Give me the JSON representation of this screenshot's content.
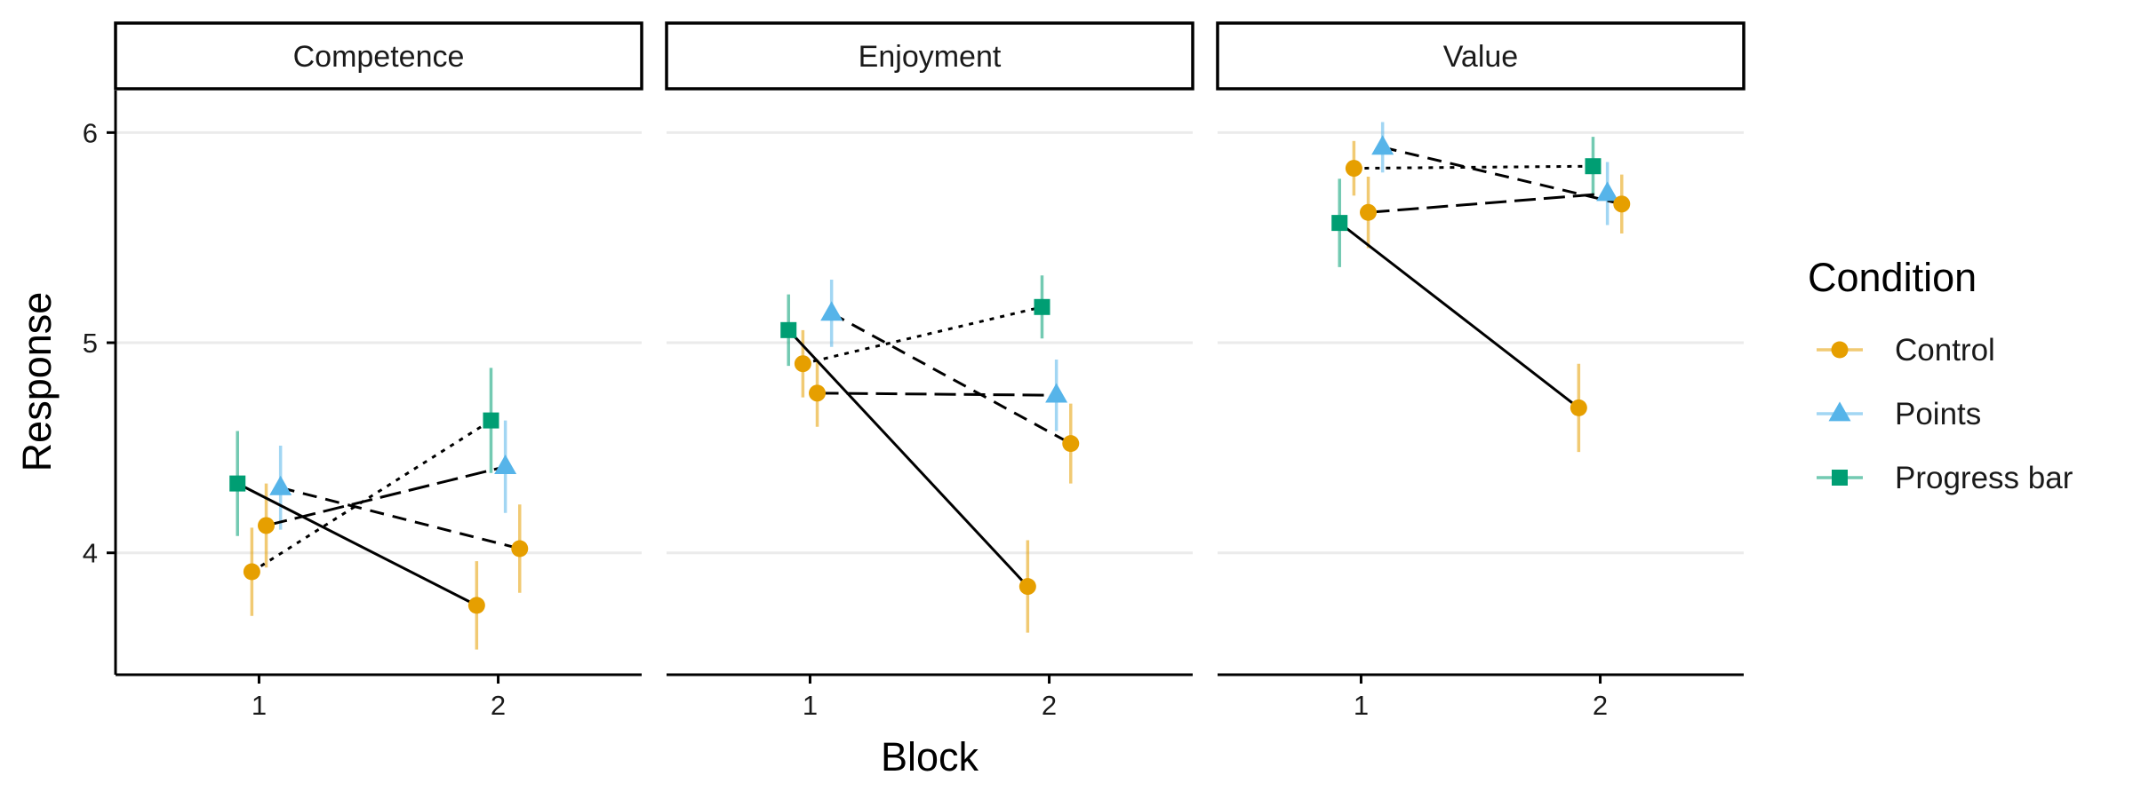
{
  "chart_data": {
    "type": "line",
    "xlabel": "Block",
    "ylabel": "Response",
    "x_ticks": [
      "1",
      "2"
    ],
    "y_ticks": [
      "4",
      "5",
      "6"
    ],
    "ylim": [
      3.42,
      6.2
    ],
    "grid": "horizontal major lines",
    "legend": {
      "title": "Condition",
      "position": "right",
      "entries": [
        "Control",
        "Points",
        "Progress bar"
      ]
    },
    "panels": [
      "Competence",
      "Enjoyment",
      "Value"
    ],
    "series": [
      {
        "panel": "Competence",
        "condition": "Progress bar",
        "linetype": "solid",
        "x": [
          0.91,
          1.91
        ],
        "y": [
          4.33,
          null
        ],
        "lo": [
          4.08,
          null
        ],
        "hi": [
          4.58,
          null
        ],
        "pts": [
          [
            0.91,
            4.33,
            4.08,
            4.58
          ],
          [
            1.91,
            3.75,
            3.54,
            3.96
          ]
        ]
      },
      {
        "panel": "Competence",
        "condition": "Points",
        "linetype": "dashed",
        "pts": [
          [
            1.09,
            4.31,
            4.11,
            4.51
          ],
          [
            2.09,
            4.02,
            3.81,
            4.23
          ]
        ]
      },
      {
        "panel": "Competence",
        "condition": "Control",
        "linetype": "dotted",
        "pts": [
          [
            0.97,
            3.91,
            3.7,
            4.12
          ],
          [
            1.97,
            4.63,
            4.38,
            4.88
          ]
        ]
      },
      {
        "panel": "Competence",
        "condition": "Control",
        "linetype": "longdash",
        "pts": [
          [
            1.03,
            4.13,
            3.93,
            4.33
          ],
          [
            2.03,
            4.41,
            4.19,
            4.63
          ]
        ]
      },
      {
        "panel": "Enjoyment",
        "condition": "Progress bar",
        "linetype": "solid",
        "pts": [
          [
            0.91,
            5.06,
            4.89,
            5.23
          ],
          [
            1.91,
            3.84,
            3.62,
            4.06
          ]
        ]
      },
      {
        "panel": "Enjoyment",
        "condition": "Points",
        "linetype": "dashed",
        "pts": [
          [
            1.09,
            5.14,
            4.98,
            5.3
          ],
          [
            2.09,
            4.52,
            4.33,
            4.71
          ]
        ]
      },
      {
        "panel": "Enjoyment",
        "condition": "Control",
        "linetype": "dotted",
        "pts": [
          [
            0.97,
            4.9,
            4.74,
            5.06
          ],
          [
            1.97,
            5.17,
            5.02,
            5.32
          ]
        ]
      },
      {
        "panel": "Enjoyment",
        "condition": "Control",
        "linetype": "longdash",
        "pts": [
          [
            1.03,
            4.76,
            4.6,
            4.92
          ],
          [
            2.03,
            4.75,
            4.58,
            4.92
          ]
        ]
      },
      {
        "panel": "Value",
        "condition": "Progress bar",
        "linetype": "solid",
        "pts": [
          [
            0.91,
            5.57,
            5.36,
            5.78
          ],
          [
            1.91,
            4.69,
            4.48,
            4.9
          ]
        ]
      },
      {
        "panel": "Value",
        "condition": "Points",
        "linetype": "dashed",
        "pts": [
          [
            1.09,
            5.93,
            5.81,
            6.05
          ],
          [
            2.09,
            5.66,
            5.52,
            5.8
          ]
        ]
      },
      {
        "panel": "Value",
        "condition": "Control",
        "linetype": "dotted",
        "pts": [
          [
            0.97,
            5.83,
            5.7,
            5.96
          ],
          [
            1.97,
            5.84,
            5.7,
            5.98
          ]
        ]
      },
      {
        "panel": "Value",
        "condition": "Control",
        "linetype": "longdash",
        "pts": [
          [
            1.03,
            5.62,
            5.45,
            5.79
          ],
          [
            2.03,
            5.71,
            5.56,
            5.86
          ]
        ]
      }
    ],
    "points": [
      {
        "panel": "Competence",
        "condition": "Progress bar",
        "x": 0.91,
        "y": 4.33,
        "lo": 4.08,
        "hi": 4.58
      },
      {
        "panel": "Competence",
        "condition": "Control",
        "x": 0.97,
        "y": 3.91,
        "lo": 3.7,
        "hi": 4.12
      },
      {
        "panel": "Competence",
        "condition": "Control",
        "x": 1.03,
        "y": 4.13,
        "lo": 3.93,
        "hi": 4.33
      },
      {
        "panel": "Competence",
        "condition": "Points",
        "x": 1.09,
        "y": 4.31,
        "lo": 4.11,
        "hi": 4.51
      },
      {
        "panel": "Competence",
        "condition": "Control",
        "x": 1.91,
        "y": 3.75,
        "lo": 3.54,
        "hi": 3.96
      },
      {
        "panel": "Competence",
        "condition": "Progress bar",
        "x": 1.97,
        "y": 4.63,
        "lo": 4.38,
        "hi": 4.88
      },
      {
        "panel": "Competence",
        "condition": "Points",
        "x": 2.03,
        "y": 4.41,
        "lo": 4.19,
        "hi": 4.63
      },
      {
        "panel": "Competence",
        "condition": "Control",
        "x": 2.09,
        "y": 4.02,
        "lo": 3.81,
        "hi": 4.23
      },
      {
        "panel": "Enjoyment",
        "condition": "Progress bar",
        "x": 0.91,
        "y": 5.06,
        "lo": 4.89,
        "hi": 5.23
      },
      {
        "panel": "Enjoyment",
        "condition": "Control",
        "x": 0.97,
        "y": 4.9,
        "lo": 4.74,
        "hi": 5.06
      },
      {
        "panel": "Enjoyment",
        "condition": "Control",
        "x": 1.03,
        "y": 4.76,
        "lo": 4.6,
        "hi": 4.92
      },
      {
        "panel": "Enjoyment",
        "condition": "Points",
        "x": 1.09,
        "y": 5.14,
        "lo": 4.98,
        "hi": 5.3
      },
      {
        "panel": "Enjoyment",
        "condition": "Control",
        "x": 1.91,
        "y": 3.84,
        "lo": 3.62,
        "hi": 4.06
      },
      {
        "panel": "Enjoyment",
        "condition": "Progress bar",
        "x": 1.97,
        "y": 5.17,
        "lo": 5.02,
        "hi": 5.32
      },
      {
        "panel": "Enjoyment",
        "condition": "Points",
        "x": 2.03,
        "y": 4.75,
        "lo": 4.58,
        "hi": 4.92
      },
      {
        "panel": "Enjoyment",
        "condition": "Control",
        "x": 2.09,
        "y": 4.52,
        "lo": 4.33,
        "hi": 4.71
      },
      {
        "panel": "Value",
        "condition": "Progress bar",
        "x": 0.91,
        "y": 5.57,
        "lo": 5.36,
        "hi": 5.78
      },
      {
        "panel": "Value",
        "condition": "Control",
        "x": 0.97,
        "y": 5.83,
        "lo": 5.7,
        "hi": 5.96
      },
      {
        "panel": "Value",
        "condition": "Control",
        "x": 1.03,
        "y": 5.62,
        "lo": 5.45,
        "hi": 5.79
      },
      {
        "panel": "Value",
        "condition": "Points",
        "x": 1.09,
        "y": 5.93,
        "lo": 5.81,
        "hi": 6.05
      },
      {
        "panel": "Value",
        "condition": "Control",
        "x": 1.91,
        "y": 4.69,
        "lo": 4.48,
        "hi": 4.9
      },
      {
        "panel": "Value",
        "condition": "Progress bar",
        "x": 1.97,
        "y": 5.84,
        "lo": 5.7,
        "hi": 5.98
      },
      {
        "panel": "Value",
        "condition": "Points",
        "x": 2.03,
        "y": 5.71,
        "lo": 5.56,
        "hi": 5.86
      },
      {
        "panel": "Value",
        "condition": "Control",
        "x": 2.09,
        "y": 5.66,
        "lo": 5.52,
        "hi": 5.8
      }
    ],
    "connectors": [
      {
        "panel": "Competence",
        "linetype": "solid",
        "from": [
          0.91,
          4.33
        ],
        "to": [
          1.91,
          3.75
        ]
      },
      {
        "panel": "Competence",
        "linetype": "dotted",
        "from": [
          0.97,
          3.91
        ],
        "to": [
          1.97,
          4.63
        ]
      },
      {
        "panel": "Competence",
        "linetype": "longdash",
        "from": [
          1.03,
          4.13
        ],
        "to": [
          2.03,
          4.41
        ]
      },
      {
        "panel": "Competence",
        "linetype": "dashed",
        "from": [
          1.09,
          4.31
        ],
        "to": [
          2.09,
          4.02
        ]
      },
      {
        "panel": "Enjoyment",
        "linetype": "solid",
        "from": [
          0.91,
          5.06
        ],
        "to": [
          1.91,
          3.84
        ]
      },
      {
        "panel": "Enjoyment",
        "linetype": "dotted",
        "from": [
          0.97,
          4.9
        ],
        "to": [
          1.97,
          5.17
        ]
      },
      {
        "panel": "Enjoyment",
        "linetype": "longdash",
        "from": [
          1.03,
          4.76
        ],
        "to": [
          2.03,
          4.75
        ]
      },
      {
        "panel": "Enjoyment",
        "linetype": "dashed",
        "from": [
          1.09,
          5.14
        ],
        "to": [
          2.09,
          4.52
        ]
      },
      {
        "panel": "Value",
        "linetype": "solid",
        "from": [
          0.91,
          5.57
        ],
        "to": [
          1.91,
          4.69
        ]
      },
      {
        "panel": "Value",
        "linetype": "dotted",
        "from": [
          0.97,
          5.83
        ],
        "to": [
          1.97,
          5.84
        ]
      },
      {
        "panel": "Value",
        "linetype": "longdash",
        "from": [
          1.03,
          5.62
        ],
        "to": [
          2.03,
          5.71
        ]
      },
      {
        "panel": "Value",
        "linetype": "dashed",
        "from": [
          1.09,
          5.93
        ],
        "to": [
          2.09,
          5.66
        ]
      }
    ]
  },
  "colors": {
    "Control": "#E69F00",
    "Points": "#56B4E9",
    "Progress bar": "#009E73",
    "grid": "#ebebeb",
    "axis": "#000000"
  },
  "shapes": {
    "Control": "circle",
    "Points": "triangle",
    "Progress bar": "square"
  }
}
